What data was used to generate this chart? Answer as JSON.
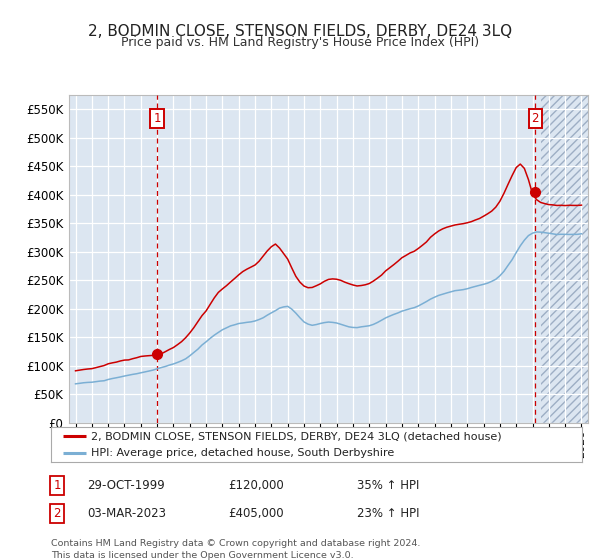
{
  "title": "2, BODMIN CLOSE, STENSON FIELDS, DERBY, DE24 3LQ",
  "subtitle": "Price paid vs. HM Land Registry's House Price Index (HPI)",
  "legend_line1": "2, BODMIN CLOSE, STENSON FIELDS, DERBY, DE24 3LQ (detached house)",
  "legend_line2": "HPI: Average price, detached house, South Derbyshire",
  "annotation1_label": "1",
  "annotation1_date": "29-OCT-1999",
  "annotation1_price": "£120,000",
  "annotation1_hpi": "35% ↑ HPI",
  "annotation2_label": "2",
  "annotation2_date": "03-MAR-2023",
  "annotation2_price": "£405,000",
  "annotation2_hpi": "23% ↑ HPI",
  "footer": "Contains HM Land Registry data © Crown copyright and database right 2024.\nThis data is licensed under the Open Government Licence v3.0.",
  "property_color": "#cc0000",
  "hpi_color": "#7bafd4",
  "plot_bg_color": "#dce6f1",
  "ylim": [
    0,
    575000
  ],
  "yticks": [
    0,
    50000,
    100000,
    150000,
    200000,
    250000,
    300000,
    350000,
    400000,
    450000,
    500000,
    550000
  ],
  "sale1_year": 2000.0,
  "sale1_price": 120000,
  "sale2_year": 2023.17,
  "sale2_price": 405000,
  "hpi_data_x": [
    1995.0,
    1995.25,
    1995.5,
    1995.75,
    1996.0,
    1996.25,
    1996.5,
    1996.75,
    1997.0,
    1997.25,
    1997.5,
    1997.75,
    1998.0,
    1998.25,
    1998.5,
    1998.75,
    1999.0,
    1999.25,
    1999.5,
    1999.75,
    2000.0,
    2000.25,
    2000.5,
    2000.75,
    2001.0,
    2001.25,
    2001.5,
    2001.75,
    2002.0,
    2002.25,
    2002.5,
    2002.75,
    2003.0,
    2003.25,
    2003.5,
    2003.75,
    2004.0,
    2004.25,
    2004.5,
    2004.75,
    2005.0,
    2005.25,
    2005.5,
    2005.75,
    2006.0,
    2006.25,
    2006.5,
    2006.75,
    2007.0,
    2007.25,
    2007.5,
    2007.75,
    2008.0,
    2008.25,
    2008.5,
    2008.75,
    2009.0,
    2009.25,
    2009.5,
    2009.75,
    2010.0,
    2010.25,
    2010.5,
    2010.75,
    2011.0,
    2011.25,
    2011.5,
    2011.75,
    2012.0,
    2012.25,
    2012.5,
    2012.75,
    2013.0,
    2013.25,
    2013.5,
    2013.75,
    2014.0,
    2014.25,
    2014.5,
    2014.75,
    2015.0,
    2015.25,
    2015.5,
    2015.75,
    2016.0,
    2016.25,
    2016.5,
    2016.75,
    2017.0,
    2017.25,
    2017.5,
    2017.75,
    2018.0,
    2018.25,
    2018.5,
    2018.75,
    2019.0,
    2019.25,
    2019.5,
    2019.75,
    2020.0,
    2020.25,
    2020.5,
    2020.75,
    2021.0,
    2021.25,
    2021.5,
    2021.75,
    2022.0,
    2022.25,
    2022.5,
    2022.75,
    2023.0,
    2023.25,
    2023.5,
    2023.75,
    2024.0,
    2024.25,
    2024.5,
    2024.75,
    2025.0,
    2025.25,
    2025.5,
    2025.75,
    2026.0
  ],
  "hpi_data_y": [
    68000,
    69000,
    70000,
    70500,
    71000,
    72000,
    73000,
    74000,
    76000,
    77500,
    79000,
    80500,
    82000,
    83500,
    85000,
    86500,
    88000,
    89500,
    91000,
    93000,
    95000,
    97000,
    99000,
    101000,
    103000,
    106000,
    109000,
    113000,
    118000,
    124000,
    130000,
    137000,
    143000,
    149000,
    155000,
    160000,
    165000,
    168000,
    171000,
    173000,
    175000,
    176000,
    177000,
    178000,
    180000,
    183000,
    186000,
    190000,
    194000,
    198000,
    202000,
    204000,
    205000,
    200000,
    193000,
    185000,
    178000,
    174000,
    172000,
    173000,
    175000,
    177000,
    178000,
    177000,
    176000,
    174000,
    172000,
    170000,
    169000,
    169000,
    170000,
    171000,
    172000,
    174000,
    177000,
    181000,
    185000,
    188000,
    191000,
    194000,
    197000,
    199000,
    201000,
    203000,
    206000,
    210000,
    214000,
    218000,
    221000,
    224000,
    226000,
    228000,
    230000,
    232000,
    233000,
    234000,
    235000,
    237000,
    239000,
    241000,
    243000,
    245000,
    248000,
    252000,
    258000,
    266000,
    276000,
    286000,
    298000,
    310000,
    320000,
    328000,
    332000,
    334000,
    334000,
    333000,
    332000,
    331000,
    330000,
    330000,
    330000,
    330000,
    330000,
    330000,
    331000
  ],
  "prop_data_x": [
    1995.0,
    1995.25,
    1995.5,
    1995.75,
    1996.0,
    1996.25,
    1996.5,
    1996.75,
    1997.0,
    1997.25,
    1997.5,
    1997.75,
    1998.0,
    1998.25,
    1998.5,
    1998.75,
    1999.0,
    1999.25,
    1999.5,
    1999.75,
    2000.0,
    2000.25,
    2000.5,
    2000.75,
    2001.0,
    2001.25,
    2001.5,
    2001.75,
    2002.0,
    2002.25,
    2002.5,
    2002.75,
    2003.0,
    2003.25,
    2003.5,
    2003.75,
    2004.0,
    2004.25,
    2004.5,
    2004.75,
    2005.0,
    2005.25,
    2005.5,
    2005.75,
    2006.0,
    2006.25,
    2006.5,
    2006.75,
    2007.0,
    2007.25,
    2007.5,
    2007.75,
    2008.0,
    2008.25,
    2008.5,
    2008.75,
    2009.0,
    2009.25,
    2009.5,
    2009.75,
    2010.0,
    2010.25,
    2010.5,
    2010.75,
    2011.0,
    2011.25,
    2011.5,
    2011.75,
    2012.0,
    2012.25,
    2012.5,
    2012.75,
    2013.0,
    2013.25,
    2013.5,
    2013.75,
    2014.0,
    2014.25,
    2014.5,
    2014.75,
    2015.0,
    2015.25,
    2015.5,
    2015.75,
    2016.0,
    2016.25,
    2016.5,
    2016.75,
    2017.0,
    2017.25,
    2017.5,
    2017.75,
    2018.0,
    2018.25,
    2018.5,
    2018.75,
    2019.0,
    2019.25,
    2019.5,
    2019.75,
    2020.0,
    2020.25,
    2020.5,
    2020.75,
    2021.0,
    2021.25,
    2021.5,
    2021.75,
    2022.0,
    2022.25,
    2022.5,
    2022.75,
    2023.0,
    2023.25,
    2023.5,
    2023.75,
    2024.0,
    2024.25,
    2024.5,
    2024.75,
    2025.0,
    2025.25,
    2025.5,
    2025.75,
    2026.0
  ],
  "prop_data_y": [
    91000,
    92000,
    93000,
    93500,
    94000,
    96000,
    98000,
    100000,
    103000,
    105000,
    107000,
    109000,
    111000,
    112000,
    114000,
    116000,
    118000,
    119000,
    120000,
    121000,
    120000,
    124000,
    128000,
    132000,
    136000,
    141000,
    147000,
    154000,
    162000,
    171000,
    181000,
    192000,
    200000,
    211000,
    222000,
    232000,
    238000,
    243000,
    250000,
    256000,
    262000,
    268000,
    272000,
    276000,
    280000,
    287000,
    296000,
    305000,
    312000,
    317000,
    310000,
    300000,
    290000,
    275000,
    260000,
    250000,
    243000,
    240000,
    240000,
    243000,
    247000,
    252000,
    255000,
    256000,
    255000,
    253000,
    250000,
    247000,
    245000,
    244000,
    244000,
    246000,
    248000,
    252000,
    257000,
    263000,
    270000,
    276000,
    282000,
    288000,
    294000,
    298000,
    302000,
    305000,
    310000,
    316000,
    322000,
    330000,
    336000,
    341000,
    345000,
    348000,
    350000,
    352000,
    353000,
    354000,
    355000,
    357000,
    360000,
    363000,
    367000,
    371000,
    376000,
    383000,
    393000,
    407000,
    423000,
    438000,
    452000,
    458000,
    450000,
    430000,
    405000,
    395000,
    390000,
    388000,
    387000,
    386000,
    385000,
    385000,
    385000,
    385000,
    385000,
    385000,
    386000
  ]
}
